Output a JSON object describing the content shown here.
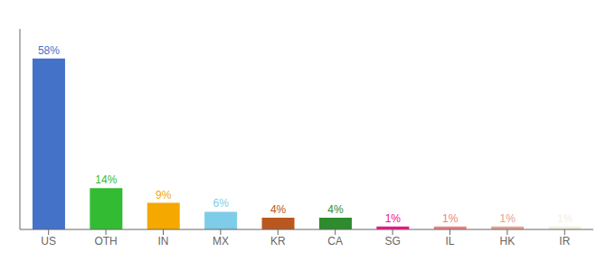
{
  "chart_data": {
    "type": "bar",
    "categories": [
      "US",
      "OTH",
      "IN",
      "MX",
      "KR",
      "CA",
      "SG",
      "IL",
      "HK",
      "IR"
    ],
    "values": [
      58,
      14,
      9,
      6,
      4,
      4,
      1,
      1,
      1,
      1
    ],
    "value_labels": [
      "58%",
      "14%",
      "9%",
      "6%",
      "4%",
      "4%",
      "1%",
      "1%",
      "1%",
      "1%"
    ],
    "data_labels": true,
    "colors": [
      "#4472c8",
      "#33bb33",
      "#f5a800",
      "#7ecce8",
      "#b85820",
      "#2e8b2e",
      "#ee1188",
      "#f08080",
      "#e8a090",
      "#f5f0dc"
    ],
    "ylim": [
      0,
      68
    ],
    "tick_labels": "x",
    "grid": false
  }
}
